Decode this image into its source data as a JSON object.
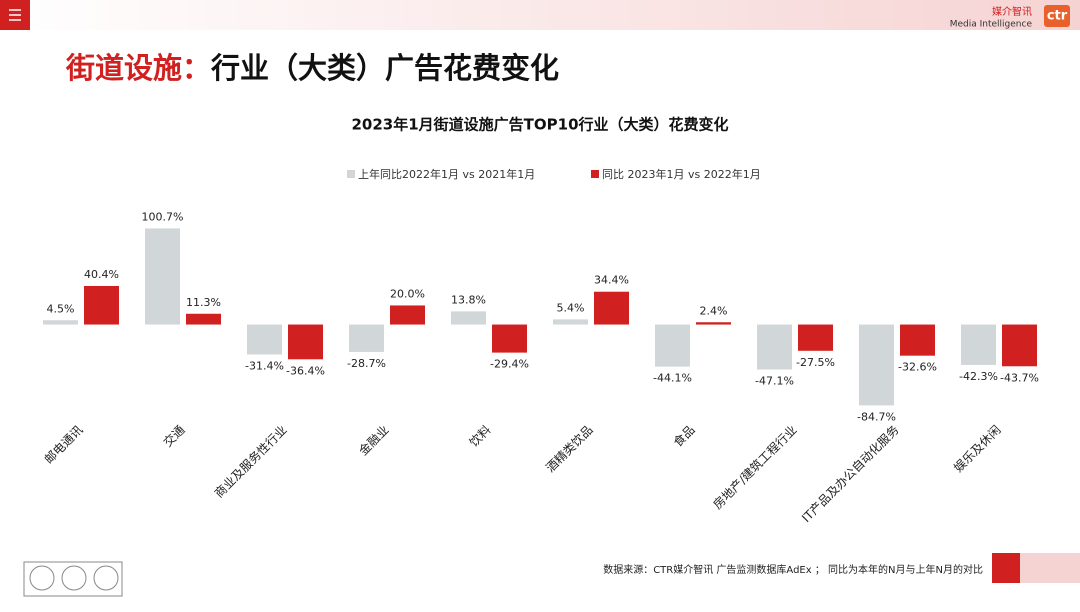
{
  "header": {
    "title_highlight": "街道设施：",
    "title": "行业（大类）广告花费变化",
    "logo_cn": "媒介智讯",
    "logo_en": "Media Intelligence",
    "logo_mark": "ctr"
  },
  "chart_data": {
    "type": "bar",
    "title": "2023年1月街道设施广告TOP10行业（大类）花费变化",
    "categories": [
      "邮电通讯",
      "交通",
      "商业及服务性行业",
      "金融业",
      "饮料",
      "酒精类饮品",
      "食品",
      "房地产/建筑工程行业",
      "IT产品及办公自动化服务",
      "娱乐及休闲"
    ],
    "series": [
      {
        "name": "上年同比2022年1月  vs  2021年1月",
        "color": "#d1d6d9",
        "values": [
          4.5,
          100.7,
          -31.4,
          -28.7,
          13.8,
          5.4,
          -44.1,
          -47.1,
          -84.7,
          -42.3
        ],
        "value_labels": [
          "4.5%",
          "100.7%",
          "-31.4%",
          "-28.7%",
          "13.8%",
          "5.4%",
          "-44.1%",
          "-47.1%",
          "-84.7%",
          "-42.3%"
        ]
      },
      {
        "name": "同比 2023年1月  vs  2022年1月",
        "color": "#d0201f",
        "values": [
          40.4,
          11.3,
          -36.4,
          20.0,
          -29.4,
          34.4,
          2.4,
          -27.5,
          -32.6,
          -43.7
        ],
        "value_labels": [
          "40.4%",
          "11.3%",
          "-36.4%",
          "20.0%",
          "-29.4%",
          "34.4%",
          "2.4%",
          "-27.5%",
          "-32.6%",
          "-43.7%"
        ]
      }
    ],
    "ylim": [
      -100,
      120
    ],
    "legend": "top"
  },
  "footer": {
    "source": "数据来源：CTR媒介智讯 广告监测数据库AdEx ； 同比为本年的N月与上年N月的对比"
  }
}
